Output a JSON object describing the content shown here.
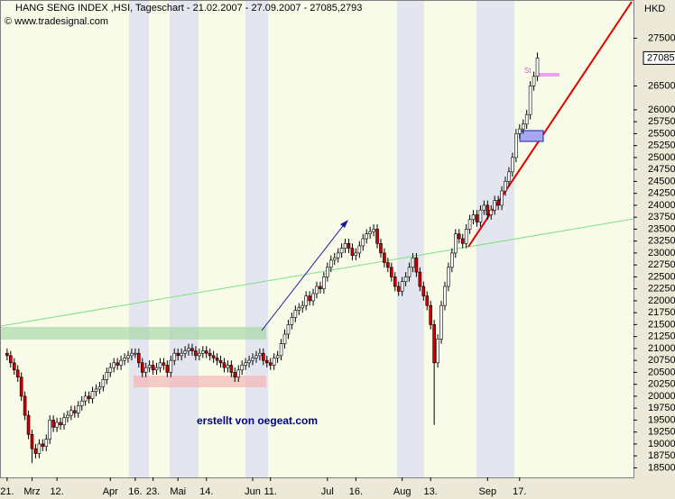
{
  "chart_data": {
    "type": "candlestick",
    "title": "HANG SENG INDEX ,HSI, Tageschart - 21.02.2007 - 27.09.2007 - 27085,2793",
    "subtitle": "© www.tradesignal.com",
    "annotation": "erstellt von oegeat.com",
    "axis_label": "HKD",
    "marker_label": "St",
    "last_value": 27085,
    "up_color": "#ffffff",
    "down_color": "#cc0000",
    "outline_color": "#000000",
    "xlim": [
      -2,
      176
    ],
    "ylim": [
      18300,
      28300
    ],
    "xticks": [
      {
        "value": 0,
        "label": "21."
      },
      {
        "value": 7,
        "label": "Mrz"
      },
      {
        "value": 14,
        "label": "12."
      },
      {
        "value": 29,
        "label": "Apr"
      },
      {
        "value": 36,
        "label": "16."
      },
      {
        "value": 41,
        "label": "23."
      },
      {
        "value": 48,
        "label": "Mai"
      },
      {
        "value": 56,
        "label": "14."
      },
      {
        "value": 69,
        "label": "Jun"
      },
      {
        "value": 74,
        "label": "11."
      },
      {
        "value": 90,
        "label": "Jul"
      },
      {
        "value": 98,
        "label": "16."
      },
      {
        "value": 111,
        "label": "Aug"
      },
      {
        "value": 119,
        "label": "13."
      },
      {
        "value": 135,
        "label": "Sep"
      },
      {
        "value": 144,
        "label": "17."
      }
    ],
    "yticks": [
      18500,
      18750,
      19000,
      19250,
      19500,
      19750,
      20000,
      20250,
      20500,
      20750,
      21000,
      21250,
      21500,
      21750,
      22000,
      22250,
      22500,
      22750,
      23000,
      23250,
      23500,
      23750,
      24000,
      24250,
      24500,
      24750,
      25000,
      25250,
      25500,
      25750,
      26000,
      26500,
      27500
    ],
    "ohlc": [
      [
        20900,
        21000,
        20750,
        20850
      ],
      [
        20850,
        20950,
        20600,
        20700
      ],
      [
        20700,
        20800,
        20450,
        20550
      ],
      [
        20550,
        20650,
        20300,
        20400
      ],
      [
        20400,
        20500,
        19900,
        20000
      ],
      [
        20000,
        20100,
        19500,
        19600
      ],
      [
        19600,
        19700,
        19100,
        19200
      ],
      [
        19200,
        19300,
        18600,
        18900
      ],
      [
        18900,
        19000,
        18700,
        18800
      ],
      [
        18800,
        19100,
        18700,
        19000
      ],
      [
        19000,
        19100,
        18850,
        18950
      ],
      [
        18950,
        19200,
        18850,
        19100
      ],
      [
        19100,
        19600,
        19000,
        19500
      ],
      [
        19500,
        19600,
        19250,
        19350
      ],
      [
        19350,
        19550,
        19250,
        19450
      ],
      [
        19450,
        19550,
        19300,
        19400
      ],
      [
        19400,
        19650,
        19300,
        19550
      ],
      [
        19550,
        19700,
        19450,
        19600
      ],
      [
        19600,
        19800,
        19500,
        19700
      ],
      [
        19700,
        19800,
        19550,
        19650
      ],
      [
        19650,
        19900,
        19550,
        19800
      ],
      [
        19800,
        20000,
        19700,
        19900
      ],
      [
        19900,
        20100,
        19800,
        20000
      ],
      [
        20000,
        20100,
        19850,
        19950
      ],
      [
        19950,
        20200,
        19850,
        20100
      ],
      [
        20100,
        20250,
        20000,
        20150
      ],
      [
        20150,
        20300,
        20050,
        20200
      ],
      [
        20200,
        20450,
        20100,
        20350
      ],
      [
        20350,
        20600,
        20250,
        20500
      ],
      [
        20500,
        20700,
        20400,
        20600
      ],
      [
        20600,
        20800,
        20500,
        20700
      ],
      [
        20700,
        20800,
        20550,
        20650
      ],
      [
        20650,
        20850,
        20550,
        20750
      ],
      [
        20750,
        20900,
        20650,
        20800
      ],
      [
        20800,
        20950,
        20700,
        20850
      ],
      [
        20850,
        21000,
        20750,
        20900
      ],
      [
        20900,
        21000,
        20800,
        20900
      ],
      [
        20900,
        21000,
        20600,
        20700
      ],
      [
        20700,
        20800,
        20400,
        20500
      ],
      [
        20500,
        20700,
        20400,
        20600
      ],
      [
        20600,
        20750,
        20500,
        20650
      ],
      [
        20650,
        20750,
        20450,
        20550
      ],
      [
        20550,
        20700,
        20450,
        20600
      ],
      [
        20600,
        20800,
        20500,
        20700
      ],
      [
        20700,
        20800,
        20550,
        20650
      ],
      [
        20650,
        20750,
        20400,
        20500
      ],
      [
        20500,
        20850,
        20400,
        20750
      ],
      [
        20750,
        21000,
        20650,
        20900
      ],
      [
        20900,
        21000,
        20750,
        20850
      ],
      [
        20850,
        21000,
        20750,
        20900
      ],
      [
        20900,
        21050,
        20800,
        20950
      ],
      [
        20950,
        21100,
        20850,
        21000
      ],
      [
        21000,
        21100,
        20850,
        20950
      ],
      [
        20950,
        21050,
        20750,
        20850
      ],
      [
        20850,
        21000,
        20750,
        20900
      ],
      [
        20900,
        21050,
        20800,
        20950
      ],
      [
        20950,
        21050,
        20800,
        20900
      ],
      [
        20900,
        21000,
        20750,
        20850
      ],
      [
        20850,
        20950,
        20700,
        20800
      ],
      [
        20800,
        20900,
        20650,
        20750
      ],
      [
        20750,
        20850,
        20600,
        20700
      ],
      [
        20700,
        20800,
        20500,
        20600
      ],
      [
        20600,
        20750,
        20500,
        20650
      ],
      [
        20650,
        20750,
        20400,
        20500
      ],
      [
        20500,
        20600,
        20300,
        20400
      ],
      [
        20400,
        20650,
        20300,
        20550
      ],
      [
        20550,
        20750,
        20450,
        20650
      ],
      [
        20650,
        20800,
        20550,
        20700
      ],
      [
        20700,
        20850,
        20600,
        20750
      ],
      [
        20750,
        20900,
        20650,
        20800
      ],
      [
        20800,
        20950,
        20700,
        20850
      ],
      [
        20850,
        21000,
        20750,
        20900
      ],
      [
        20900,
        21000,
        20650,
        20750
      ],
      [
        20750,
        20850,
        20600,
        20700
      ],
      [
        20700,
        20800,
        20550,
        20650
      ],
      [
        20650,
        20900,
        20550,
        20800
      ],
      [
        20800,
        20950,
        20700,
        20850
      ],
      [
        20850,
        21200,
        20750,
        21100
      ],
      [
        21100,
        21400,
        21000,
        21300
      ],
      [
        21300,
        21600,
        21200,
        21500
      ],
      [
        21500,
        21750,
        21400,
        21650
      ],
      [
        21650,
        21900,
        21550,
        21800
      ],
      [
        21800,
        21950,
        21700,
        21850
      ],
      [
        21850,
        22000,
        21750,
        21900
      ],
      [
        21900,
        22200,
        21800,
        22100
      ],
      [
        22100,
        22200,
        21900,
        22000
      ],
      [
        22000,
        22250,
        21900,
        22150
      ],
      [
        22150,
        22400,
        22050,
        22300
      ],
      [
        22300,
        22400,
        22150,
        22250
      ],
      [
        22250,
        22600,
        22150,
        22500
      ],
      [
        22500,
        22800,
        22400,
        22700
      ],
      [
        22700,
        22950,
        22600,
        22850
      ],
      [
        22850,
        23000,
        22750,
        22900
      ],
      [
        22900,
        23100,
        22800,
        23000
      ],
      [
        23000,
        23200,
        22900,
        23100
      ],
      [
        23100,
        23300,
        23000,
        23200
      ],
      [
        23200,
        23300,
        23000,
        23100
      ],
      [
        23100,
        23200,
        22850,
        22950
      ],
      [
        22950,
        23100,
        22850,
        23000
      ],
      [
        23000,
        23250,
        22900,
        23150
      ],
      [
        23150,
        23400,
        23050,
        23300
      ],
      [
        23300,
        23500,
        23200,
        23400
      ],
      [
        23400,
        23550,
        23300,
        23450
      ],
      [
        23450,
        23600,
        23350,
        23500
      ],
      [
        23500,
        23600,
        23100,
        23200
      ],
      [
        23200,
        23300,
        22900,
        23000
      ],
      [
        23000,
        23100,
        22700,
        22800
      ],
      [
        22800,
        22900,
        22600,
        22700
      ],
      [
        22700,
        22800,
        22400,
        22500
      ],
      [
        22500,
        22600,
        22200,
        22300
      ],
      [
        22300,
        22400,
        22100,
        22200
      ],
      [
        22200,
        22500,
        22100,
        22400
      ],
      [
        22400,
        22600,
        22300,
        22500
      ],
      [
        22500,
        22800,
        22400,
        22700
      ],
      [
        22700,
        23000,
        22600,
        22900
      ],
      [
        22900,
        23000,
        22500,
        22600
      ],
      [
        22600,
        22700,
        22200,
        22300
      ],
      [
        22300,
        22400,
        22000,
        22100
      ],
      [
        22100,
        22200,
        21800,
        21900
      ],
      [
        21900,
        22000,
        21400,
        21500
      ],
      [
        21500,
        21600,
        19400,
        20700
      ],
      [
        20700,
        21300,
        20600,
        21200
      ],
      [
        21200,
        22000,
        21100,
        21900
      ],
      [
        21900,
        22400,
        21800,
        22300
      ],
      [
        22300,
        22800,
        22200,
        22700
      ],
      [
        22700,
        23100,
        22600,
        23000
      ],
      [
        23000,
        23500,
        22900,
        23400
      ],
      [
        23400,
        23500,
        23200,
        23300
      ],
      [
        23300,
        23400,
        23100,
        23200
      ],
      [
        23200,
        23600,
        23100,
        23500
      ],
      [
        23500,
        23800,
        23400,
        23700
      ],
      [
        23700,
        23900,
        23600,
        23800
      ],
      [
        23800,
        23900,
        23550,
        23650
      ],
      [
        23650,
        24000,
        23550,
        23900
      ],
      [
        23900,
        24100,
        23800,
        24000
      ],
      [
        24000,
        24100,
        23700,
        23800
      ],
      [
        23800,
        24000,
        23700,
        23900
      ],
      [
        23900,
        24200,
        23800,
        24100
      ],
      [
        24100,
        24200,
        23900,
        24000
      ],
      [
        24000,
        24400,
        23900,
        24300
      ],
      [
        24300,
        24600,
        24200,
        24500
      ],
      [
        24500,
        24800,
        24400,
        24700
      ],
      [
        24700,
        25100,
        24600,
        25000
      ],
      [
        25000,
        25600,
        24900,
        25500
      ],
      [
        25500,
        25700,
        25400,
        25600
      ],
      [
        25600,
        25800,
        25500,
        25700
      ],
      [
        25700,
        26000,
        25600,
        25900
      ],
      [
        25900,
        26600,
        25800,
        26500
      ],
      [
        26500,
        26800,
        26400,
        26700
      ],
      [
        26700,
        27200,
        26600,
        27085
      ]
    ]
  }
}
